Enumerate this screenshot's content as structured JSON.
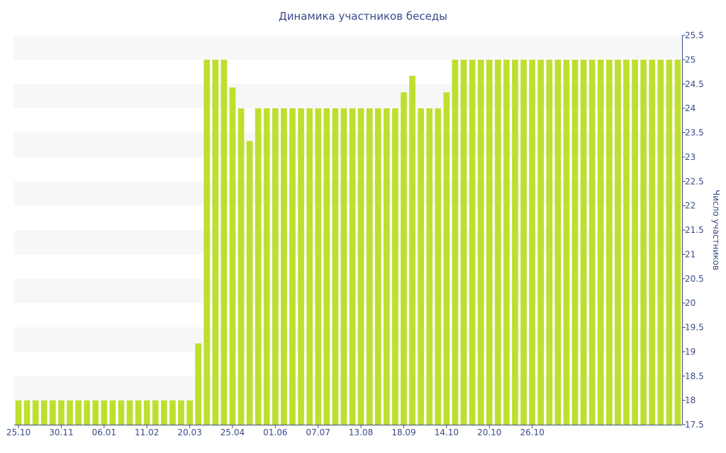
{
  "chart_data": {
    "type": "bar",
    "title": "Динамика участников беседы",
    "xlabel": "",
    "ylabel": "Число участников",
    "ylim": [
      17.5,
      25.5
    ],
    "y_axis_position": "right",
    "yticks": [
      "17.5",
      "18",
      "18.5",
      "19",
      "19.5",
      "20",
      "20.5",
      "21",
      "21.5",
      "22",
      "22.5",
      "23",
      "23.5",
      "24",
      "24.5",
      "25",
      "25.5"
    ],
    "xtick_labels": [
      "25.10",
      "30.11",
      "06.01",
      "11.02",
      "20.03",
      "25.04",
      "01.06",
      "07.07",
      "13.08",
      "18.09",
      "14.10",
      "20.10",
      "26.10"
    ],
    "xtick_indices": [
      0,
      5,
      10,
      15,
      20,
      25,
      30,
      35,
      40,
      45,
      50,
      55,
      60
    ],
    "grid": "horizontal alternating bands",
    "bar_color": "#bedf2e",
    "values": [
      18,
      18,
      18,
      18,
      18,
      18,
      18,
      18,
      18,
      18,
      18,
      18,
      18,
      18,
      18,
      18,
      18,
      18,
      18.0,
      18,
      18,
      19.17,
      25,
      25,
      25,
      24.43,
      24,
      23.33,
      24,
      24,
      24,
      24,
      24,
      24,
      24,
      24,
      24,
      24,
      24,
      24,
      24,
      24,
      24,
      24,
      24,
      24.33,
      24.67,
      24,
      24,
      24,
      24.33,
      25,
      25,
      25,
      25,
      25,
      25,
      25,
      25,
      25,
      25,
      25,
      25,
      25,
      25,
      25,
      25,
      25,
      25,
      25,
      25,
      25,
      25,
      25,
      25,
      25,
      25,
      25
    ]
  }
}
